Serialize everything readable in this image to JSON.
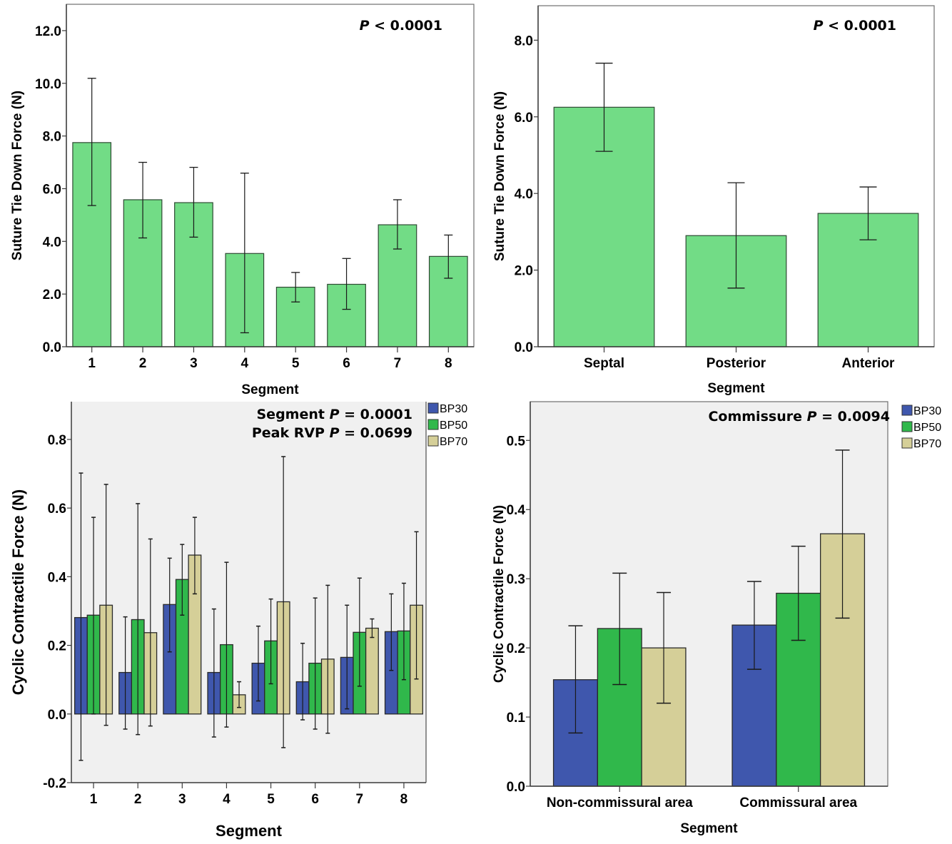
{
  "colors": {
    "single_bar": "#72dc86",
    "BP30": "#3f57ad",
    "BP50": "#30b84b",
    "BP70": "#d5cf98",
    "panel_bg_grouped": "#f0f0f0"
  },
  "chart_data": [
    {
      "id": "top-left",
      "type": "bar",
      "title": "",
      "annotation": {
        "italic": "P",
        "text": " < 0.0001"
      },
      "xlabel": "Segment",
      "ylabel": "Suture Tie Down Force (N)",
      "categories": [
        "1",
        "2",
        "3",
        "4",
        "5",
        "6",
        "7",
        "8"
      ],
      "values": [
        7.75,
        5.58,
        5.47,
        3.54,
        2.26,
        2.37,
        4.63,
        3.43
      ],
      "error_low": [
        5.36,
        4.13,
        4.16,
        0.53,
        1.7,
        1.42,
        3.71,
        2.6
      ],
      "error_high": [
        10.19,
        7.0,
        6.81,
        6.59,
        2.82,
        3.35,
        5.58,
        4.24
      ],
      "ylim": [
        0,
        13.0
      ],
      "yticks": [
        0,
        2,
        4,
        6,
        8,
        10,
        12
      ],
      "ytick_labels": [
        "0.0",
        "2.0",
        "4.0",
        "6.0",
        "8.0",
        "10.0",
        "12.0"
      ],
      "grid": false,
      "legend": null
    },
    {
      "id": "top-right",
      "type": "bar",
      "title": "",
      "annotation": {
        "italic": "P",
        "text": " < 0.0001"
      },
      "xlabel": "Segment",
      "ylabel": "Suture Tie Down Force (N)",
      "categories": [
        "Septal",
        "Posterior",
        "Anterior"
      ],
      "values": [
        6.25,
        2.9,
        3.48
      ],
      "error_low": [
        5.1,
        1.53,
        2.79
      ],
      "error_high": [
        7.4,
        4.28,
        4.17
      ],
      "ylim": [
        0,
        8.9
      ],
      "yticks": [
        0,
        2,
        4,
        6,
        8
      ],
      "ytick_labels": [
        "0.0",
        "2.0",
        "4.0",
        "6.0",
        "8.0"
      ],
      "grid": false,
      "legend": null
    },
    {
      "id": "bottom-left",
      "type": "bar",
      "title": "",
      "annotation_lines": [
        {
          "prefix": "Segment ",
          "italic": "P",
          "text": " = 0.0001"
        },
        {
          "prefix": "Peak RVP ",
          "italic": "P",
          "text": " = 0.0699"
        }
      ],
      "xlabel": "Segment",
      "ylabel": "Cyclic Contractile Force (N)",
      "categories": [
        "1",
        "2",
        "3",
        "4",
        "5",
        "6",
        "7",
        "8"
      ],
      "series": [
        {
          "name": "BP30",
          "values": [
            0.281,
            0.121,
            0.319,
            0.121,
            0.148,
            0.094,
            0.165,
            0.24
          ],
          "error_low": [
            -0.135,
            -0.044,
            0.181,
            -0.067,
            0.038,
            -0.017,
            0.015,
            0.127
          ],
          "error_high": [
            0.702,
            0.283,
            0.454,
            0.306,
            0.256,
            0.206,
            0.317,
            0.35
          ]
        },
        {
          "name": "BP50",
          "values": [
            0.288,
            0.275,
            0.392,
            0.202,
            0.213,
            0.148,
            0.238,
            0.242
          ],
          "error_low": [
            0.0,
            -0.06,
            0.288,
            -0.038,
            0.088,
            -0.044,
            0.081,
            0.1
          ],
          "error_high": [
            0.573,
            0.613,
            0.494,
            0.442,
            0.335,
            0.338,
            0.396,
            0.381
          ]
        },
        {
          "name": "BP70",
          "values": [
            0.317,
            0.237,
            0.463,
            0.056,
            0.327,
            0.16,
            0.25,
            0.317
          ],
          "error_low": [
            -0.033,
            -0.035,
            0.35,
            0.019,
            -0.098,
            -0.056,
            0.223,
            0.102
          ],
          "error_high": [
            0.669,
            0.51,
            0.573,
            0.094,
            0.75,
            0.375,
            0.277,
            0.531
          ]
        }
      ],
      "ylim": [
        -0.2,
        0.91
      ],
      "yticks": [
        -0.2,
        0.0,
        0.2,
        0.4,
        0.6,
        0.8
      ],
      "ytick_labels": [
        "-0.2",
        "0.0",
        "0.2",
        "0.4",
        "0.6",
        "0.8"
      ],
      "grid": false,
      "legend": "right-top-outside"
    },
    {
      "id": "bottom-right",
      "type": "bar",
      "title": "",
      "annotation": {
        "prefix": "Commissure ",
        "italic": "P",
        "text": " = 0.0094"
      },
      "xlabel": "Segment",
      "ylabel": "Cyclic Contractile Force (N)",
      "categories": [
        "Non-commissural area",
        "Commissural area"
      ],
      "series": [
        {
          "name": "BP30",
          "values": [
            0.154,
            0.233
          ],
          "error_low": [
            0.077,
            0.169
          ],
          "error_high": [
            0.232,
            0.296
          ]
        },
        {
          "name": "BP50",
          "values": [
            0.228,
            0.279
          ],
          "error_low": [
            0.147,
            0.211
          ],
          "error_high": [
            0.308,
            0.347
          ]
        },
        {
          "name": "BP70",
          "values": [
            0.2,
            0.365
          ],
          "error_low": [
            0.12,
            0.243
          ],
          "error_high": [
            0.28,
            0.486
          ]
        }
      ],
      "ylim": [
        0,
        0.556
      ],
      "yticks": [
        0.0,
        0.1,
        0.2,
        0.3,
        0.4,
        0.5
      ],
      "ytick_labels": [
        "0.0",
        "0.1",
        "0.2",
        "0.3",
        "0.4",
        "0.5"
      ],
      "grid": false,
      "legend": "right-top-outside"
    }
  ]
}
